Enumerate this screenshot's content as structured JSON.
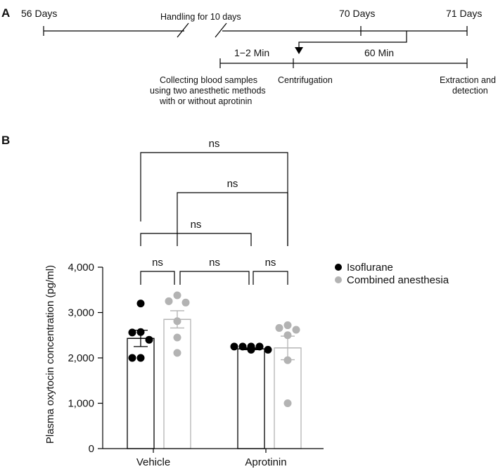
{
  "panel_a": {
    "letter": "A",
    "day_labels": [
      "56 Days",
      "70 Days",
      "71 Days"
    ],
    "handling_label": "Handling for 10 days",
    "interval_1": "1−2 Min",
    "interval_2": "60 Min",
    "step_collect": [
      "Collecting blood samples",
      "using two anesthetic methods",
      "with or without aprotinin"
    ],
    "step_centrifuge": "Centrifugation",
    "step_extract": [
      "Extraction and",
      "detection"
    ]
  },
  "panel_b": {
    "letter": "B"
  },
  "chart_data": {
    "type": "bar",
    "ylabel": "Plasma oxytocin concentration (pg/ml)",
    "xlabel": "",
    "ylim": [
      0,
      4000
    ],
    "yticks": [
      0,
      1000,
      2000,
      3000,
      4000
    ],
    "ytick_labels": [
      "0",
      "1,000",
      "2,000",
      "3,000",
      "4,000"
    ],
    "categories": [
      "Vehicle",
      "Aprotinin"
    ],
    "legend_position": "top-right",
    "series": [
      {
        "name": "Isoflurane",
        "color": "#000000",
        "values": [
          2430,
          2200
        ],
        "sem": [
          180,
          20
        ],
        "points": [
          [
            3200,
            2570,
            2560,
            2400,
            2000,
            2000
          ],
          [
            2250,
            2250,
            2250,
            2250,
            2180,
            2180
          ]
        ]
      },
      {
        "name": "Combined anesthesia",
        "color": "#b3b3b3",
        "values": [
          2850,
          2220
        ],
        "sem": [
          190,
          260
        ],
        "points": [
          [
            3380,
            3250,
            3220,
            2810,
            2450,
            2110
          ],
          [
            2720,
            2660,
            2620,
            2500,
            1950,
            1000
          ]
        ]
      }
    ],
    "comparisons": [
      {
        "groups": "Vehicle Isoflurane vs Vehicle Combined anesthesia",
        "label": "ns"
      },
      {
        "groups": "Vehicle Combined anesthesia vs Aprotinin Isoflurane",
        "label": "ns"
      },
      {
        "groups": "Aprotinin Isoflurane vs Aprotinin Combined anesthesia",
        "label": "ns"
      },
      {
        "groups": "Vehicle Isoflurane vs Aprotinin Isoflurane",
        "label": "ns"
      },
      {
        "groups": "Vehicle Combined anesthesia vs Aprotinin Combined anesthesia",
        "label": "ns"
      },
      {
        "groups": "Vehicle Isoflurane vs Aprotinin Combined anesthesia",
        "label": "ns"
      }
    ]
  }
}
